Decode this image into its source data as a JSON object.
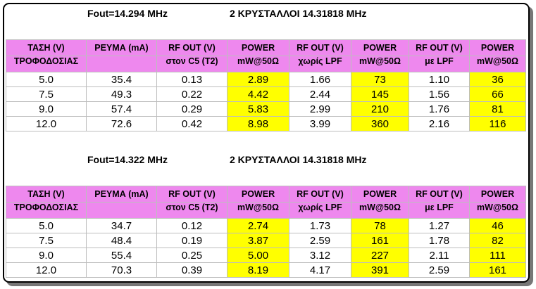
{
  "tables": [
    {
      "fout": "Fout=14.294 MHz",
      "crystal": "2 ΚΡΥΣΤΑΛΛΟΙ 14.31818 MHz",
      "header1": [
        "ΤΑΣΗ (V)",
        "ΡΕΥΜΑ (mA)",
        "RF OUT (V)",
        "POWER",
        "RF OUT (V)",
        "POWER",
        "RF OUT (V)",
        "POWER"
      ],
      "header2": [
        "ΤΡΟΦΟΔΟΣΙΑΣ",
        "",
        "στον C5 (T2)",
        "mW@50Ω",
        "χωρίς LPF",
        "mW@50Ω",
        "με LPF",
        "mW@50Ω"
      ],
      "rows": [
        [
          "5.0",
          "35.4",
          "0.13",
          "2.89",
          "1.66",
          "73",
          "1.10",
          "36"
        ],
        [
          "7.5",
          "49.3",
          "0.22",
          "4.42",
          "2.44",
          "145",
          "1.56",
          "66"
        ],
        [
          "9.0",
          "57.4",
          "0.29",
          "5.83",
          "2.99",
          "210",
          "1.76",
          "81"
        ],
        [
          "12.0",
          "72.6",
          "0.42",
          "8.98",
          "3.99",
          "360",
          "2.16",
          "116"
        ]
      ]
    },
    {
      "fout": "Fout=14.322 MHz",
      "crystal": "2 ΚΡΥΣΤΑΛΛΟΙ 14.31818 MHz",
      "header1": [
        "ΤΑΣΗ (V)",
        "ΡΕΥΜΑ (mA)",
        "RF OUT (V)",
        "POWER",
        "RF OUT (V)",
        "POWER",
        "RF OUT (V)",
        "POWER"
      ],
      "header2": [
        "ΤΡΟΦΟΔΟΣΙΑΣ",
        "",
        "στον C5 (T2)",
        "mW@50Ω",
        "χωρίς LPF",
        "mW@50Ω",
        "με LPF",
        "mW@50Ω"
      ],
      "rows": [
        [
          "5.0",
          "34.7",
          "0.12",
          "2.74",
          "1.73",
          "78",
          "1.27",
          "46"
        ],
        [
          "7.5",
          "48.4",
          "0.19",
          "3.87",
          "2.59",
          "161",
          "1.78",
          "82"
        ],
        [
          "9.0",
          "55.4",
          "0.25",
          "5.00",
          "3.12",
          "227",
          "2.11",
          "111"
        ],
        [
          "12.0",
          "70.3",
          "0.39",
          "8.19",
          "4.17",
          "391",
          "2.59",
          "161"
        ]
      ]
    }
  ],
  "colors": {
    "header_bg": "#ee88ee",
    "power_highlight": "#ffff00"
  }
}
